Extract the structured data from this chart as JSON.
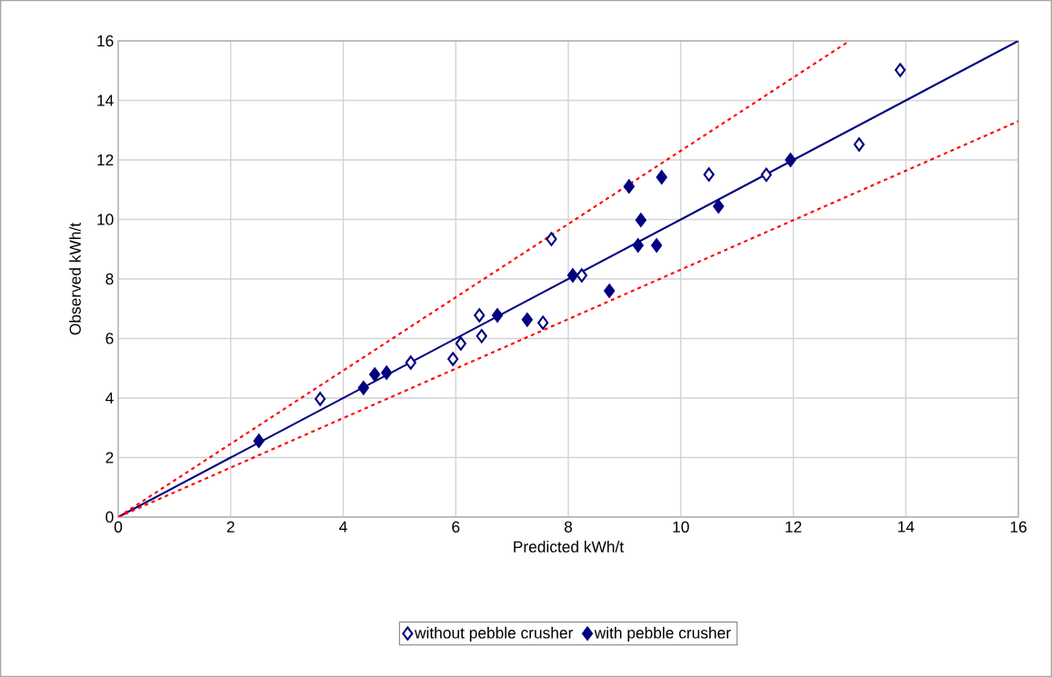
{
  "chart_data": {
    "type": "scatter",
    "xlabel": "Predicted kWh/t",
    "ylabel": "Observed kWh/t",
    "xlim": [
      0,
      16
    ],
    "ylim": [
      0,
      16
    ],
    "xticks": [
      0,
      2,
      4,
      6,
      8,
      10,
      12,
      14,
      16
    ],
    "yticks": [
      0,
      2,
      4,
      6,
      8,
      10,
      12,
      14,
      16
    ],
    "grid": true,
    "legend": "bottom",
    "marker": "diamond",
    "series": [
      {
        "name": "without pebble crusher",
        "color": "#000080",
        "x": [
          3.59,
          5.2,
          5.95,
          6.09,
          6.42,
          6.46,
          7.55,
          7.7,
          8.24,
          10.5,
          11.52,
          13.17,
          13.9
        ],
        "values": [
          3.97,
          5.19,
          5.31,
          5.83,
          6.78,
          6.08,
          6.53,
          9.34,
          8.12,
          11.51,
          11.5,
          12.52,
          15.02
        ]
      },
      {
        "name": "with pebble crusher",
        "color": "#000080",
        "x": [
          2.5,
          4.36,
          4.56,
          4.77,
          6.74,
          7.27,
          8.08,
          8.73,
          9.08,
          9.24,
          9.29,
          9.57,
          9.66,
          10.67,
          11.95
        ],
        "values": [
          2.56,
          4.34,
          4.79,
          4.85,
          6.78,
          6.63,
          8.12,
          7.6,
          11.11,
          9.13,
          9.98,
          9.13,
          11.42,
          10.44,
          12.0
        ]
      },
      {
        "color": "#000080",
        "type": "line",
        "marker": "none",
        "x": [
          0,
          16
        ],
        "values": [
          0,
          16
        ]
      },
      {
        "color": "#ff0000",
        "type": "line",
        "marker": "none",
        "line_style": "dashed",
        "x": [
          0,
          13.0
        ],
        "values": [
          0,
          16
        ]
      },
      {
        "color": "#ff0000",
        "type": "line",
        "marker": "none",
        "line_style": "dashed",
        "x": [
          0,
          16
        ],
        "values": [
          0,
          13.3
        ]
      }
    ]
  }
}
